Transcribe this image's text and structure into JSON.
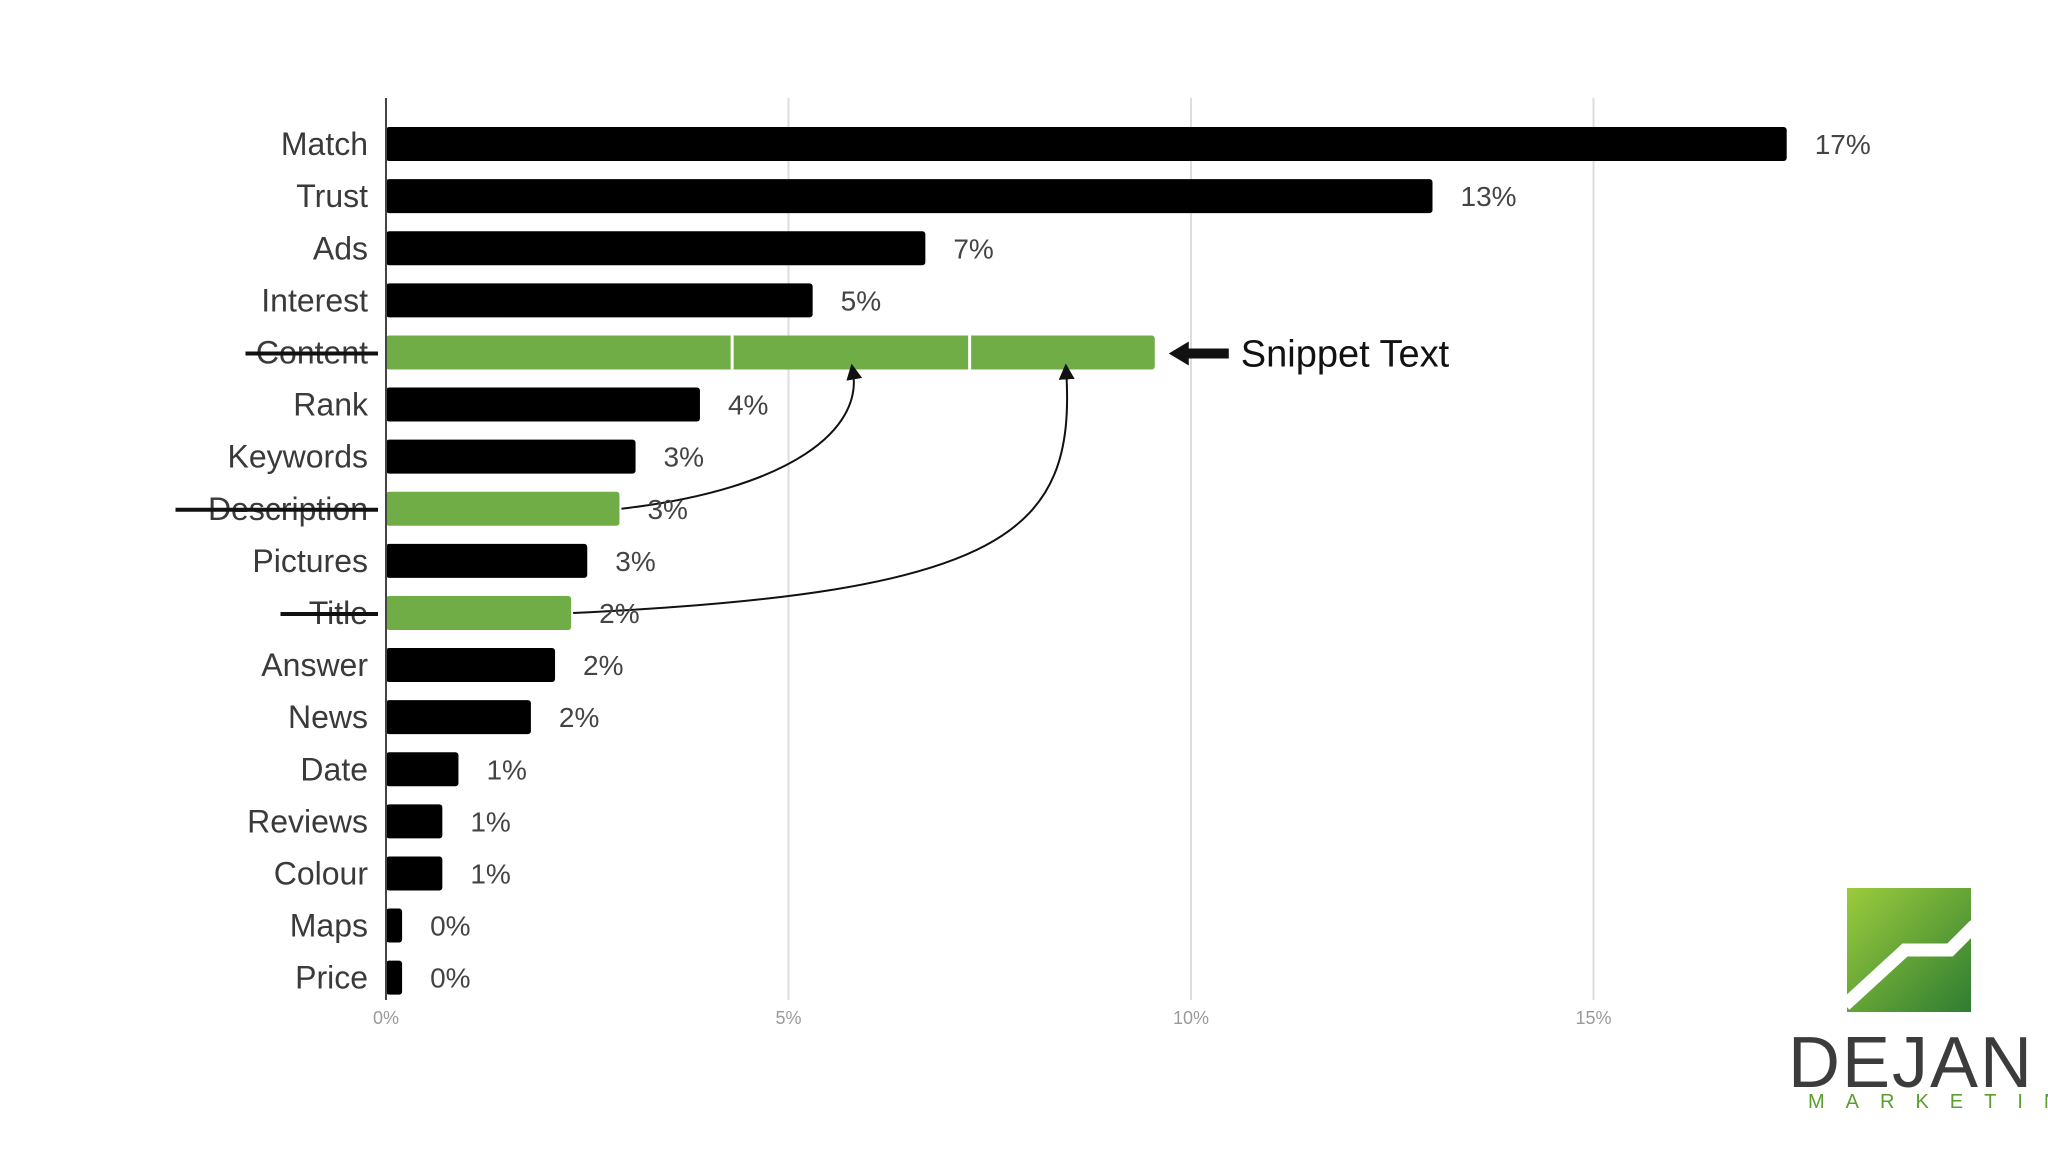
{
  "chart_data": {
    "type": "bar",
    "orientation": "horizontal",
    "categories": [
      "Match",
      "Trust",
      "Ads",
      "Interest",
      "Content",
      "Rank",
      "Keywords",
      "Description",
      "Pictures",
      "Title",
      "Answer",
      "News",
      "Date",
      "Reviews",
      "Colour",
      "Maps",
      "Price"
    ],
    "values": [
      17.4,
      13.0,
      6.7,
      5.3,
      9.55,
      3.9,
      3.1,
      2.9,
      2.5,
      2.3,
      2.1,
      1.8,
      0.9,
      0.7,
      0.7,
      0.2,
      0.2
    ],
    "value_labels": [
      "17%",
      "13%",
      "7%",
      "5%",
      "",
      "4%",
      "3%",
      "3%",
      "3%",
      "2%",
      "2%",
      "2%",
      "1%",
      "1%",
      "1%",
      "0%",
      "0%"
    ],
    "highlighted": [
      "Content",
      "Description",
      "Title"
    ],
    "struck_through": [
      "Content",
      "Description",
      "Title"
    ],
    "combined_segments": {
      "category": "Content",
      "boundaries": [
        4.3,
        7.25
      ]
    },
    "xlim": [
      0,
      17.5
    ],
    "x_ticks": [
      0,
      5,
      10,
      15
    ],
    "x_tick_labels": [
      "0%",
      "5%",
      "10%",
      "15%"
    ],
    "grid": true,
    "title": "",
    "xlabel": "",
    "ylabel": "",
    "colors": {
      "bar": "#000000",
      "highlight": "#70ad47",
      "grid": "#dddddd"
    },
    "annotation": {
      "text": "Snippet Text",
      "target": "Content",
      "icon": "left-arrow-icon"
    },
    "connectors": [
      {
        "from": "Description",
        "to_value": 5.8
      },
      {
        "from": "Title",
        "to_value": 8.45
      }
    ]
  },
  "brand": {
    "name": "DEJAN",
    "sub": "MARKETING",
    "logo_icon": "dejan-logo-icon",
    "colors": {
      "green_dark": "#2e7d32",
      "green_light": "#8bc34a"
    }
  }
}
